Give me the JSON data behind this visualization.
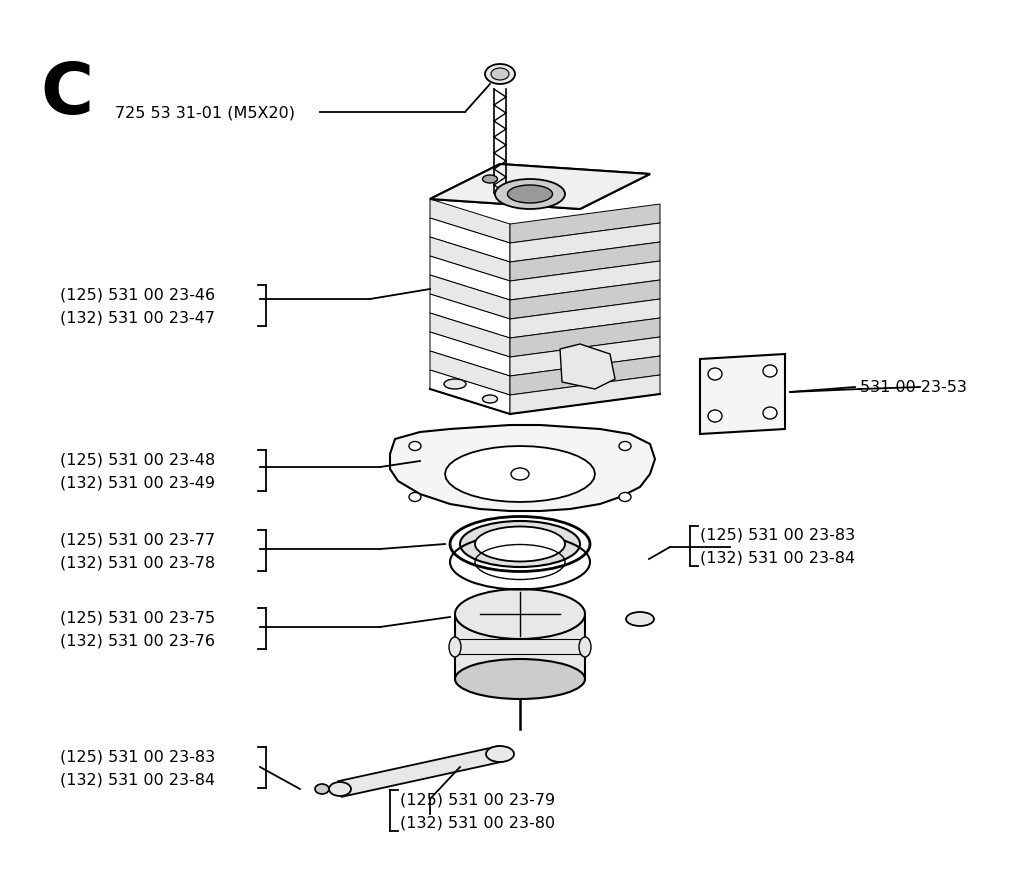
{
  "background_color": "#ffffff",
  "title_letter": "C",
  "label_bolt": "725 53 31-01 (M5X20)",
  "label_46": "(125) 531 00 23-46",
  "label_47": "(132) 531 00 23-47",
  "label_53": "531 00 23-53",
  "label_48": "(125) 531 00 23-48",
  "label_49": "(132) 531 00 23-49",
  "label_77": "(125) 531 00 23-77",
  "label_78": "(132) 531 00 23-78",
  "label_83a": "(125) 531 00 23-83",
  "label_84a": "(132) 531 00 23-84",
  "label_75": "(125) 531 00 23-75",
  "label_76": "(132) 531 00 23-76",
  "label_83b": "(125) 531 00 23-83",
  "label_84b": "(132) 531 00 23-84",
  "label_79": "(125) 531 00 23-79",
  "label_80": "(132) 531 00 23-80"
}
